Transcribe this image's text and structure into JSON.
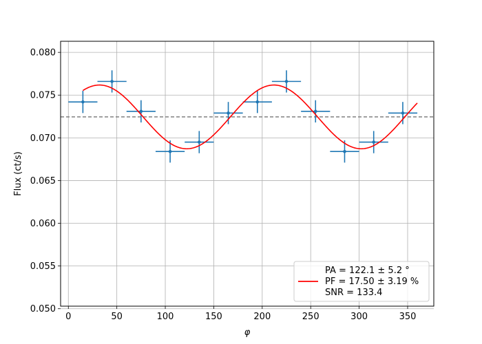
{
  "chart_data": {
    "type": "scatter",
    "xlabel": "φ",
    "ylabel": "Flux (ct/s)",
    "xlim": [
      -8,
      377
    ],
    "ylim": [
      0.0503,
      0.0813
    ],
    "x_ticks": [
      0,
      50,
      100,
      150,
      200,
      250,
      300,
      350
    ],
    "y_ticks": [
      0.05,
      0.055,
      0.06,
      0.065,
      0.07,
      0.075,
      0.08
    ],
    "y_tick_labels": [
      "0.050",
      "0.055",
      "0.060",
      "0.065",
      "0.070",
      "0.075",
      "0.080"
    ],
    "grid": true,
    "series": [
      {
        "kind": "errorbar",
        "color": "#1f77b4",
        "points": [
          {
            "x": 15,
            "y": 0.0742,
            "xerr": 15,
            "yerr": 0.0013
          },
          {
            "x": 45,
            "y": 0.0766,
            "xerr": 15,
            "yerr": 0.0013
          },
          {
            "x": 75,
            "y": 0.0731,
            "xerr": 15,
            "yerr": 0.0013
          },
          {
            "x": 105,
            "y": 0.0684,
            "xerr": 15,
            "yerr": 0.0013
          },
          {
            "x": 135,
            "y": 0.0695,
            "xerr": 15,
            "yerr": 0.0013
          },
          {
            "x": 165,
            "y": 0.0729,
            "xerr": 15,
            "yerr": 0.0013
          },
          {
            "x": 195,
            "y": 0.0742,
            "xerr": 15,
            "yerr": 0.0013
          },
          {
            "x": 225,
            "y": 0.0766,
            "xerr": 15,
            "yerr": 0.0013
          },
          {
            "x": 255,
            "y": 0.0731,
            "xerr": 15,
            "yerr": 0.0013
          },
          {
            "x": 285,
            "y": 0.0684,
            "xerr": 15,
            "yerr": 0.0013
          },
          {
            "x": 315,
            "y": 0.0695,
            "xerr": 15,
            "yerr": 0.0013
          },
          {
            "x": 345,
            "y": 0.0729,
            "xerr": 15,
            "yerr": 0.0013
          }
        ]
      },
      {
        "kind": "model",
        "color": "#ff0000",
        "mean": 0.07245,
        "amplitude": 0.00373,
        "peak_phase_deg": 32.1,
        "period_deg": 180,
        "x_range": [
          15,
          360
        ]
      },
      {
        "kind": "mean_line",
        "color": "#808080",
        "y": 0.07245
      }
    ],
    "legend": {
      "placement": "lower right",
      "entries": [
        "PA = 122.1 ± 5.2 °",
        "PF = 17.50 ± 3.19 %",
        "SNR = 133.4"
      ]
    }
  }
}
